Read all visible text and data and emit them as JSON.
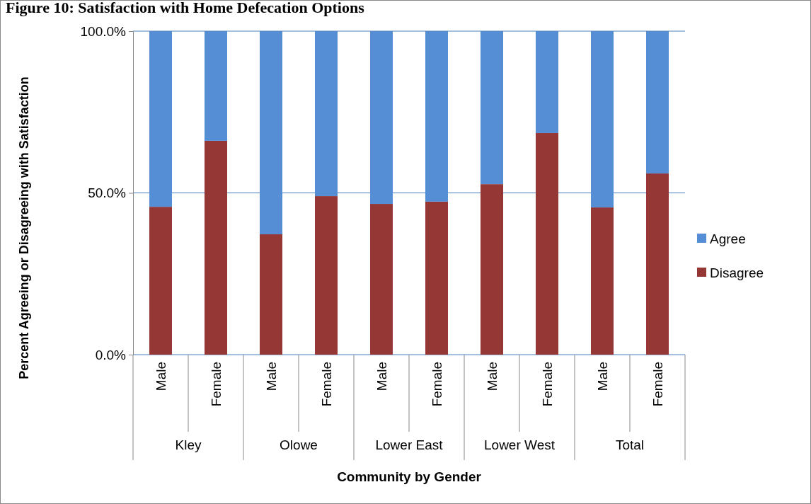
{
  "chart_data": {
    "type": "bar",
    "title": "Figure 10: Satisfaction with Home Defecation Options",
    "xlabel": "Community by Gender",
    "ylabel": "Percent Agreeing or Disagreeing with Satisfaction",
    "categories": [
      "Male",
      "Female",
      "Male",
      "Female",
      "Male",
      "Female",
      "Male",
      "Female",
      "Male",
      "Female"
    ],
    "annotations": [
      "Kley",
      "Olowe",
      "Lower East",
      "Lower West",
      "Total"
    ],
    "series": [
      {
        "name": "Disagree",
        "color": "#953735",
        "values": [
          45.7,
          66.1,
          37.2,
          49.0,
          46.6,
          47.3,
          52.7,
          68.5,
          45.5,
          56.0
        ]
      },
      {
        "name": "Agree",
        "color": "#558ed5",
        "values": [
          54.3,
          33.9,
          62.8,
          51.0,
          53.4,
          52.7,
          47.3,
          31.5,
          54.5,
          44.0
        ]
      }
    ],
    "stacked": true,
    "ylim": [
      0,
      100
    ],
    "yticks": [
      {
        "value": 0,
        "label": "0.0%"
      },
      {
        "value": 50,
        "label": "50.0%"
      },
      {
        "value": 100,
        "label": "100.0%"
      }
    ],
    "ref_lines": [
      {
        "axis": "y",
        "value": 50,
        "color": "#4a7ebb"
      }
    ],
    "legend": "right"
  }
}
